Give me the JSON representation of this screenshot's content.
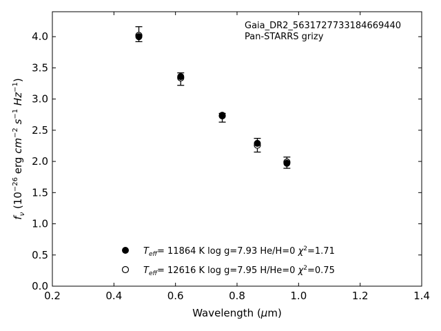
{
  "chart_data": {
    "type": "scatter",
    "title": "",
    "xlabel": {
      "pre": "Wavelength (",
      "mu": "μ",
      "post": "m)"
    },
    "ylabel": {
      "f": "f",
      "nu": "ν",
      "open": " (10",
      "e26": "−26",
      "erg": " erg ",
      "cm": "cm",
      "e2": "−2",
      "sp1": " ",
      "s": "s",
      "e1a": "−1",
      "sp2": " ",
      "hz": "Hz",
      "e1b": "−1",
      "close": ")"
    },
    "xlim": [
      0.2,
      1.4
    ],
    "ylim": [
      0.0,
      4.4
    ],
    "x_ticks": [
      0.2,
      0.4,
      0.6,
      0.8,
      1.0,
      1.2,
      1.4
    ],
    "y_ticks": [
      0.0,
      0.5,
      1.0,
      1.5,
      2.0,
      2.5,
      3.0,
      3.5,
      4.0
    ],
    "x_tick_labels": [
      "0.2",
      "0.4",
      "0.6",
      "0.8",
      "1.0",
      "1.2",
      "1.4"
    ],
    "y_tick_labels": [
      "0.0",
      "0.5",
      "1.0",
      "1.5",
      "2.0",
      "2.5",
      "3.0",
      "3.5",
      "4.0"
    ],
    "annotation": [
      "Gaia_DR2_5631727733184669440",
      "Pan-STARRS grizy"
    ],
    "observed": {
      "x": [
        0.481,
        0.617,
        0.752,
        0.866,
        0.962
      ],
      "y": [
        4.04,
        3.32,
        2.7,
        2.26,
        1.98
      ],
      "yerr": [
        0.12,
        0.1,
        0.07,
        0.11,
        0.09
      ]
    },
    "series": [
      {
        "marker": "filled",
        "label": {
          "T": "T",
          "eff": "eff",
          "rest": "= 11864 K  log g=7.93  He/H=0  ",
          "chi": "χ",
          "sq": "2",
          "chival": "=1.71"
        },
        "x": [
          0.481,
          0.617,
          0.752,
          0.866,
          0.962
        ],
        "y": [
          4.0,
          3.36,
          2.74,
          2.29,
          1.97
        ]
      },
      {
        "marker": "open",
        "label": {
          "T": "T",
          "eff": "eff",
          "rest": "= 12616 K  log g=7.95  H/He=0  ",
          "chi": "χ",
          "sq": "2",
          "chival": "=0.75"
        },
        "x": [
          0.481,
          0.617,
          0.752,
          0.866,
          0.962
        ],
        "y": [
          4.02,
          3.34,
          2.73,
          2.26,
          1.99
        ]
      }
    ],
    "legend_position": "lower-left",
    "grid": false,
    "colors": {
      "marker": "#000000",
      "axis": "#000000",
      "background": "#ffffff"
    }
  }
}
